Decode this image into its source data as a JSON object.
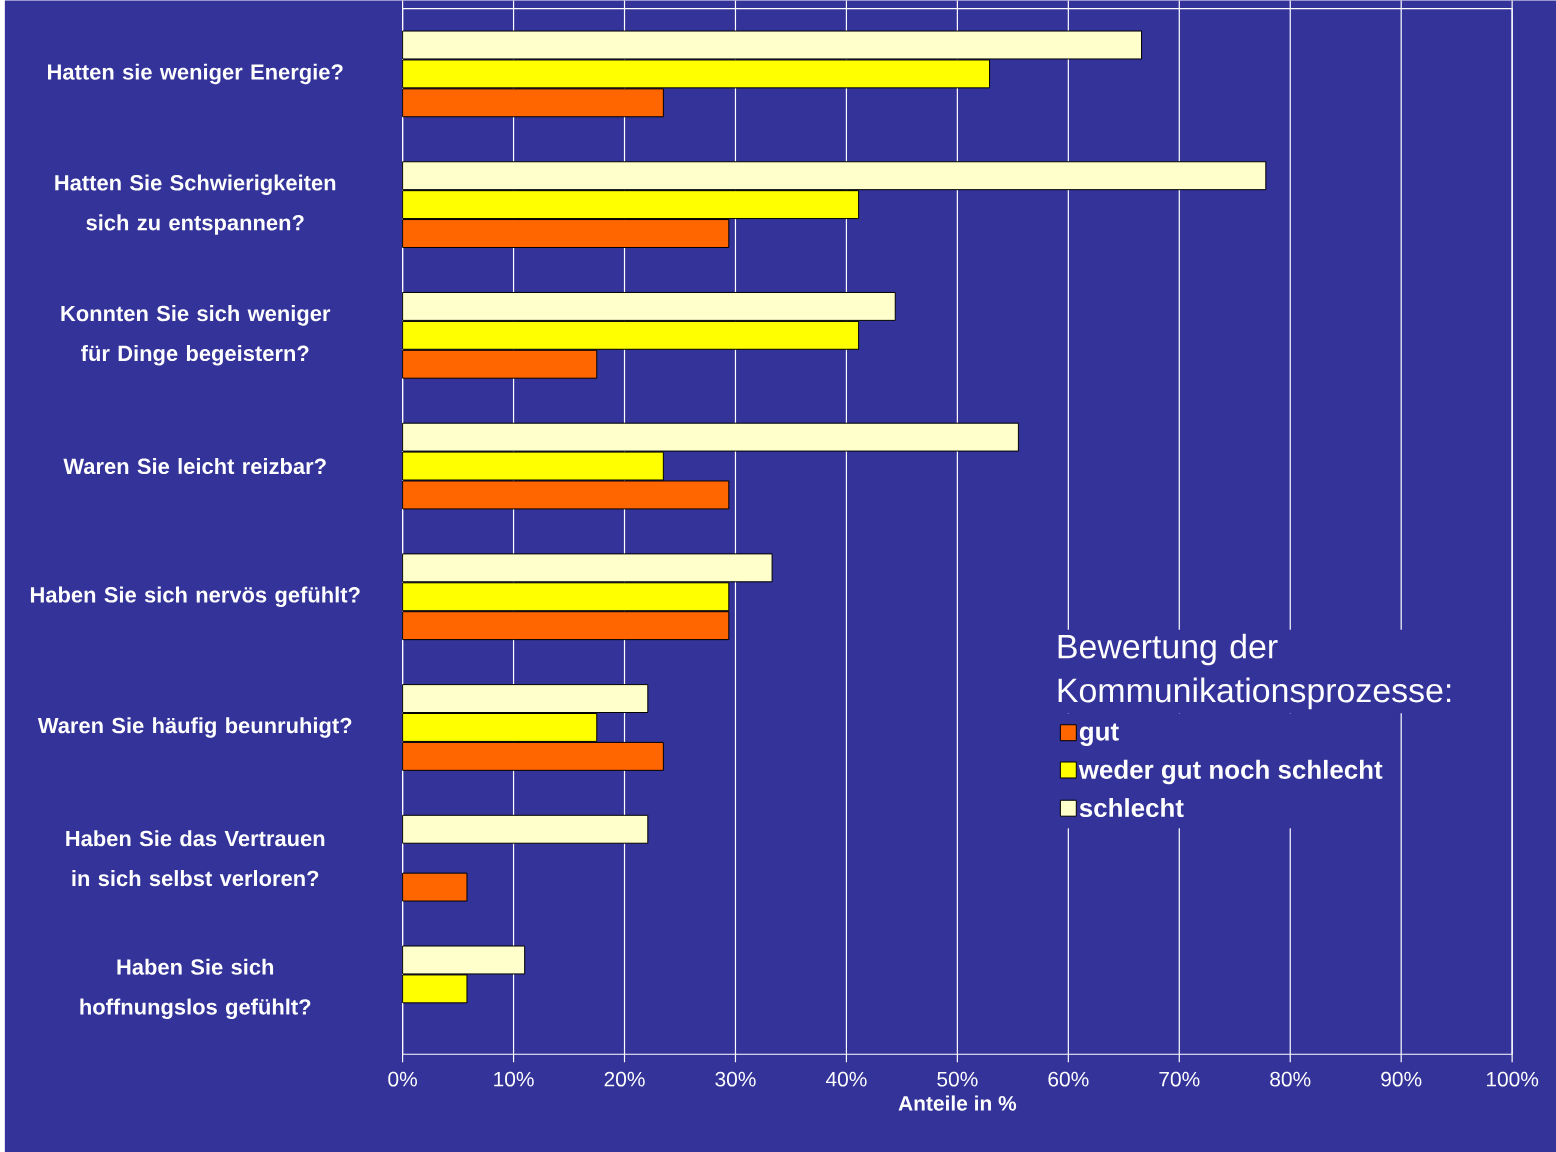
{
  "chart_data": {
    "type": "bar",
    "orientation": "horizontal",
    "categories": [
      "Hatten sie weniger Energie?",
      "Hatten Sie Schwierigkeiten sich zu entspannen?",
      "Konnten Sie sich weniger für Dinge begeistern?",
      "Waren Sie leicht reizbar?",
      "Haben Sie sich nervös gefühlt?",
      "Waren Sie häufig beunruhigt?",
      "Haben Sie das Vertrauen in sich selbst verloren?",
      "Haben Sie sich hoffnungslos gefühlt?"
    ],
    "series": [
      {
        "name": "gut",
        "color": "#ff6600",
        "values": [
          23.5,
          29.4,
          17.5,
          29.4,
          29.4,
          23.5,
          5.8,
          null
        ]
      },
      {
        "name": "weder gut noch schlecht",
        "color": "#ffff00",
        "values": [
          52.9,
          41.1,
          41.1,
          23.5,
          29.4,
          17.5,
          null,
          5.8
        ]
      },
      {
        "name": "schlecht",
        "color": "#ffffcc",
        "values": [
          66.6,
          77.8,
          44.4,
          55.5,
          33.3,
          22.1,
          22.1,
          11.0
        ]
      }
    ],
    "xlabel": "Anteile in %",
    "legend_title": "Bewertung der Kommunikationsprozesse:",
    "xlim": [
      0,
      100
    ],
    "xticks": [
      {
        "value": 0,
        "label": "0%"
      },
      {
        "value": 10,
        "label": "10%"
      },
      {
        "value": 20,
        "label": "20%"
      },
      {
        "value": 30,
        "label": "30%"
      },
      {
        "value": 40,
        "label": "40%"
      },
      {
        "value": 50,
        "label": "50%"
      },
      {
        "value": 60,
        "label": "60%"
      },
      {
        "value": 70,
        "label": "70%"
      },
      {
        "value": 80,
        "label": "80%"
      },
      {
        "value": 90,
        "label": "90%"
      },
      {
        "value": 100,
        "label": "100%"
      }
    ],
    "grid": "x",
    "legend": "bottom right"
  }
}
